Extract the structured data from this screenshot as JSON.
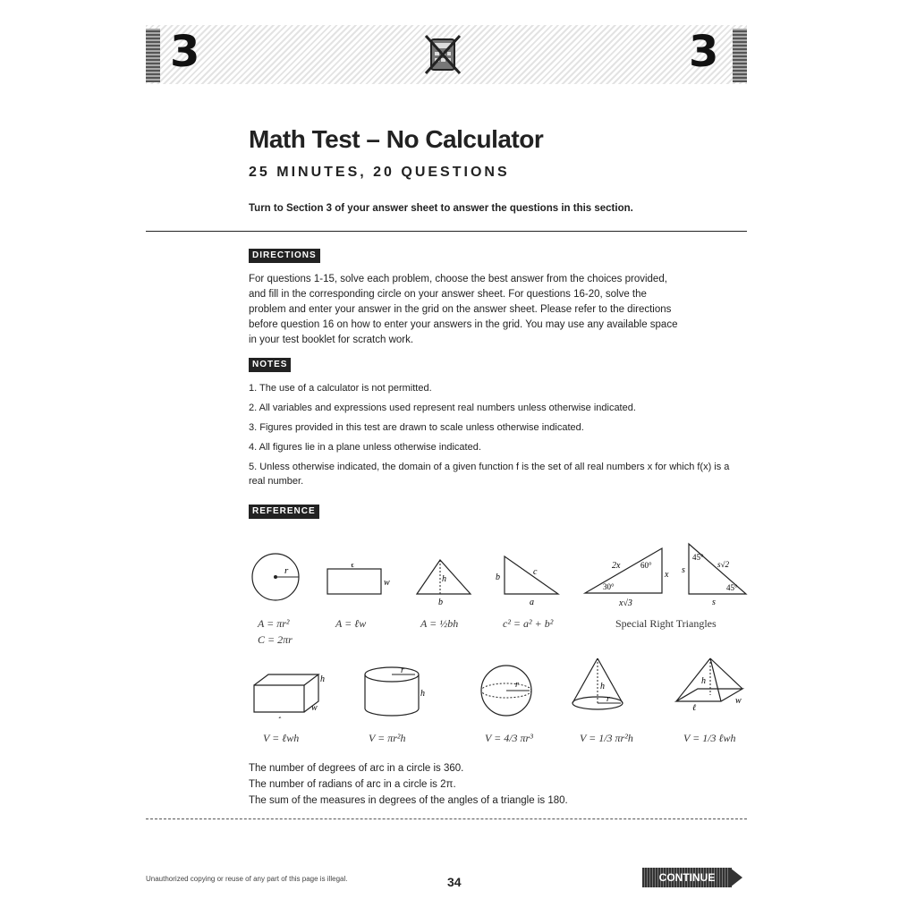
{
  "header": {
    "section_left": "3",
    "section_right": "3"
  },
  "title": "Math Test – No Calculator",
  "subtitle": "25 MINUTES, 20 QUESTIONS",
  "instruction": "Turn to Section 3 of your answer sheet to answer the questions in this section.",
  "directions": {
    "label": "DIRECTIONS",
    "text": "For questions 1-15, solve each problem, choose the best answer from the choices provided, and fill in the corresponding circle on your answer sheet. For questions 16-20, solve the problem and enter your answer in the grid on the answer sheet. Please refer to the directions before question 16 on how to enter your answers in the grid. You may use any available space in your test booklet for scratch work."
  },
  "notes": {
    "label": "NOTES",
    "items": [
      "1. The use of a calculator is not permitted.",
      "2. All variables and expressions used represent real numbers unless otherwise indicated.",
      "3. Figures provided in this test are drawn to scale unless otherwise indicated.",
      "4. All figures lie in a plane unless otherwise indicated.",
      "5. Unless otherwise indicated, the domain of a given function f is the set of all real numbers x for which f(x) is a real number."
    ]
  },
  "reference": {
    "label": "REFERENCE",
    "formulas_row1": [
      "A = πr²",
      "C = 2πr",
      "A = ℓw",
      "A = ½bh",
      "c² = a² + b²",
      "Special Right Triangles"
    ],
    "formulas_row2": [
      "V = ℓwh",
      "V = πr²h",
      "V = 4/3 πr³",
      "V = 1/3 πr²h",
      "V = 1/3 ℓwh"
    ],
    "facts": [
      "The number of degrees of arc in a circle is 360.",
      "The number of radians of arc in a circle is 2π.",
      "The sum of the measures in degrees of the angles of a triangle is 180."
    ]
  },
  "footer": {
    "notice": "Unauthorized copying or reuse of any part of this page is illegal.",
    "page_number": "34",
    "continue_label": "CONTINUE"
  }
}
